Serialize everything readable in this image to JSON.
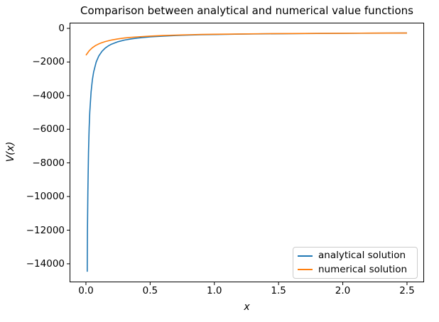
{
  "figure": {
    "title": "Comparison between analytical and numerical value functions",
    "xlabel": "x",
    "ylabel": "V(x)",
    "background_color": "#ffffff",
    "text_color": "#000000",
    "spine_color": "#000000",
    "legend_border_color": "#cccccc"
  },
  "chart_data": {
    "type": "line",
    "title": "Comparison between analytical and numerical value functions",
    "xlabel": "x",
    "ylabel": "V(x)",
    "grid": false,
    "legend_position": "lower right",
    "xlim": [
      -0.127,
      2.633
    ],
    "ylim": [
      -15100,
      337
    ],
    "x_ticks": [
      {
        "v": 0.0,
        "label": "0.0"
      },
      {
        "v": 0.5,
        "label": "0.5"
      },
      {
        "v": 1.0,
        "label": "1.0"
      },
      {
        "v": 1.5,
        "label": "1.5"
      },
      {
        "v": 2.0,
        "label": "2.0"
      },
      {
        "v": 2.5,
        "label": "2.5"
      }
    ],
    "y_ticks": [
      {
        "v": 0,
        "label": "0"
      },
      {
        "v": -2000,
        "label": "−2000"
      },
      {
        "v": -4000,
        "label": "−4000"
      },
      {
        "v": -6000,
        "label": "−6000"
      },
      {
        "v": -8000,
        "label": "−8000"
      },
      {
        "v": -10000,
        "label": "−10000"
      },
      {
        "v": -12000,
        "label": "−12000"
      },
      {
        "v": -14000,
        "label": "−14000"
      }
    ],
    "series": [
      {
        "name": "analytical solution",
        "color": "#1f77b4",
        "x": [
          0.01,
          0.012,
          0.015,
          0.02,
          0.025,
          0.03,
          0.04,
          0.05,
          0.06,
          0.08,
          0.1,
          0.125,
          0.15,
          0.175,
          0.2,
          0.25,
          0.3,
          0.35,
          0.4,
          0.5,
          0.6,
          0.7,
          0.8,
          0.9,
          1.0,
          1.2,
          1.4,
          1.6,
          1.8,
          2.0,
          2.2,
          2.5
        ],
        "y": [
          -14473,
          -12098,
          -9723,
          -7348,
          -5923,
          -4973,
          -3786,
          -3073,
          -2598,
          -2004,
          -1648,
          -1363,
          -1173,
          -1037,
          -936,
          -793,
          -698,
          -630,
          -579,
          -508,
          -461,
          -427,
          -401,
          -381,
          -366,
          -342,
          -325,
          -312,
          -302,
          -294,
          -288,
          -280
        ]
      },
      {
        "name": "numerical solution",
        "color": "#ff7f0e",
        "x": [
          0.0,
          0.025,
          0.05,
          0.075,
          0.1,
          0.125,
          0.15,
          0.2,
          0.25,
          0.3,
          0.35,
          0.4,
          0.5,
          0.6,
          0.7,
          0.8,
          0.9,
          1.0,
          1.2,
          1.4,
          1.6,
          1.8,
          2.0,
          2.2,
          2.5
        ],
        "y": [
          -1600,
          -1332,
          -1151,
          -1021,
          -923,
          -847,
          -785,
          -693,
          -626,
          -576,
          -537,
          -506,
          -459,
          -426,
          -400,
          -381,
          -365,
          -352,
          -332,
          -318,
          -307,
          -298,
          -291,
          -285,
          -278
        ]
      }
    ]
  },
  "legend": {
    "items": [
      {
        "label": "analytical solution",
        "color": "#1f77b4"
      },
      {
        "label": "numerical solution",
        "color": "#ff7f0e"
      }
    ]
  }
}
